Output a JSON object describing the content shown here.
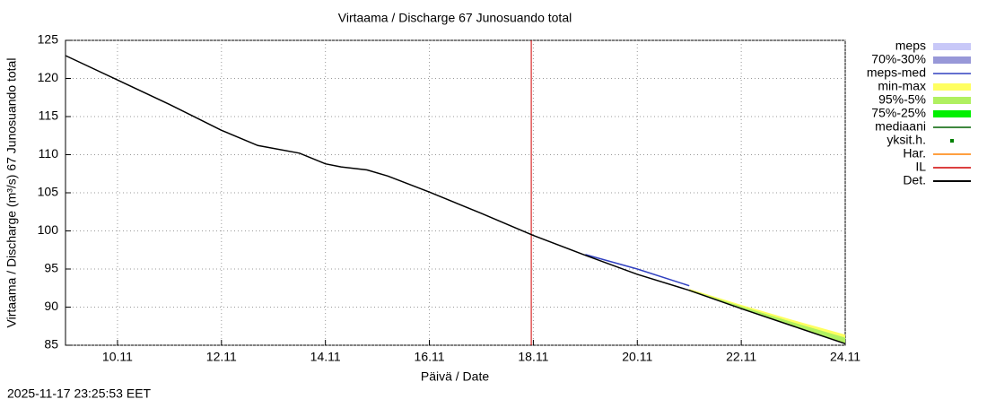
{
  "chart_data": {
    "type": "line",
    "title": "Virtaama / Discharge  67 Junosuando total",
    "x_label": "Päivä / Date",
    "y_label": "Virtaama / Discharge (m³/s)  67 Junosuando total",
    "timestamp": "2025-11-17 23:25:53 EET",
    "xlim": [
      9,
      24
    ],
    "ylim": [
      85,
      125
    ],
    "xticks": [
      {
        "value": 10,
        "label": "10.11"
      },
      {
        "value": 12,
        "label": "12.11"
      },
      {
        "value": 14,
        "label": "14.11"
      },
      {
        "value": 16,
        "label": "16.11"
      },
      {
        "value": 18,
        "label": "18.11"
      },
      {
        "value": 20,
        "label": "20.11"
      },
      {
        "value": 22,
        "label": "22.11"
      },
      {
        "value": 24,
        "label": "24.11"
      }
    ],
    "yticks": [
      85,
      90,
      95,
      100,
      105,
      110,
      115,
      120,
      125
    ],
    "grid": true,
    "series": [
      {
        "name": "meps",
        "color": "#c8c8f8",
        "kind": "band"
      },
      {
        "name": "70%-30%",
        "color": "#9898d8",
        "kind": "band"
      },
      {
        "name": "meps-med",
        "color": "#3040c0",
        "kind": "line",
        "x": [
          19,
          20,
          21
        ],
        "values": [
          96.9,
          95.0,
          92.8
        ]
      },
      {
        "name": "min-max",
        "color": "#ffff60",
        "kind": "band",
        "x": [
          21,
          22,
          23,
          24
        ],
        "low": [
          92.1,
          89.8,
          87.5,
          85.2
        ],
        "high": [
          92.4,
          90.3,
          88.3,
          86.4
        ]
      },
      {
        "name": "95%-5%",
        "color": "#b0f060",
        "kind": "band",
        "x": [
          21,
          22,
          23,
          24
        ],
        "low": [
          92.1,
          89.8,
          87.5,
          85.2
        ],
        "high": [
          92.3,
          90.1,
          88.0,
          86.0
        ]
      },
      {
        "name": "75%-25%",
        "color": "#00f000",
        "kind": "band"
      },
      {
        "name": "mediaani",
        "color": "#006000",
        "kind": "line"
      },
      {
        "name": "yksit.h.",
        "color": "#008000",
        "kind": "dot"
      },
      {
        "name": "Har.",
        "color": "#ff8000",
        "kind": "line"
      },
      {
        "name": "IL",
        "color": "#d00000",
        "kind": "vline",
        "x": [
          17.96
        ]
      },
      {
        "name": "Det.",
        "color": "#000000",
        "kind": "line",
        "x": [
          9,
          10,
          11,
          12,
          12.7,
          13.5,
          14,
          14.3,
          14.8,
          15.2,
          16,
          17,
          18,
          19,
          20,
          21,
          22,
          23,
          24
        ],
        "values": [
          123,
          119.8,
          116.6,
          113.2,
          111.2,
          110.2,
          108.8,
          108.4,
          108,
          107.2,
          105.1,
          102.3,
          99.4,
          96.8,
          94.3,
          92.2,
          89.8,
          87.5,
          85.2
        ]
      }
    ]
  }
}
